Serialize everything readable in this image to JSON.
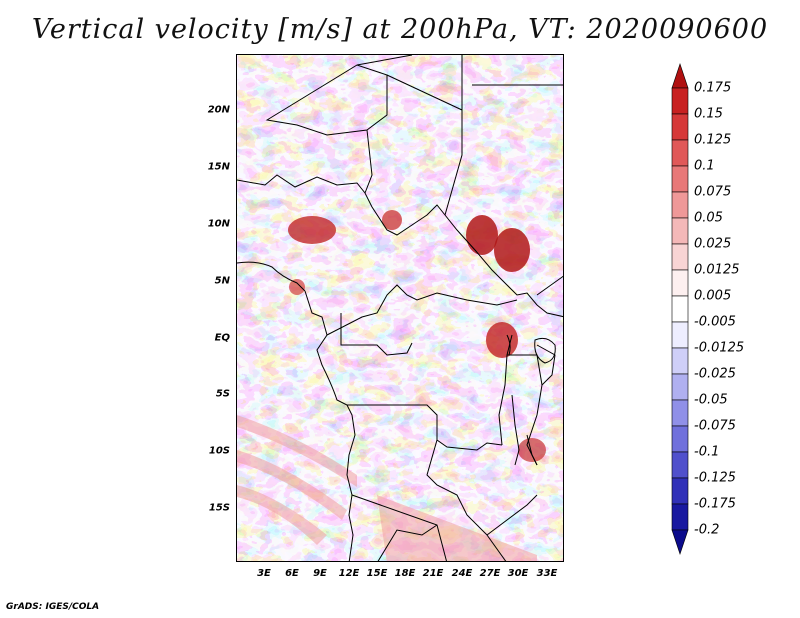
{
  "title": "Vertical velocity [m/s] at 200hPa, VT: 2020090600",
  "credit": "GrADS: IGES/COLA",
  "lat_labels": [
    "20N",
    "15N",
    "10N",
    "5N",
    "EQ",
    "5S",
    "10S",
    "15S"
  ],
  "lon_labels": [
    "3E",
    "6E",
    "9E",
    "12E",
    "15E",
    "18E",
    "21E",
    "24E",
    "27E",
    "30E",
    "33E"
  ],
  "colorbar": {
    "labels": [
      "0.175",
      "0.15",
      "0.125",
      "0.1",
      "0.075",
      "0.05",
      "0.025",
      "0.0125",
      "0.005",
      "-0.005",
      "-0.0125",
      "-0.025",
      "-0.05",
      "-0.075",
      "-0.1",
      "-0.125",
      "-0.175",
      "-0.2"
    ],
    "colors": [
      "#b01010",
      "#c82020",
      "#d63838",
      "#e05858",
      "#e87878",
      "#ef9898",
      "#f4b8b8",
      "#f8d4d4",
      "#fdf0f0",
      "#ffffff",
      "#eeeeff",
      "#cfcff8",
      "#b0b0f0",
      "#9090e8",
      "#7070dc",
      "#5050cc",
      "#3030b8",
      "#1818a0",
      "#0c0c8c"
    ]
  }
}
